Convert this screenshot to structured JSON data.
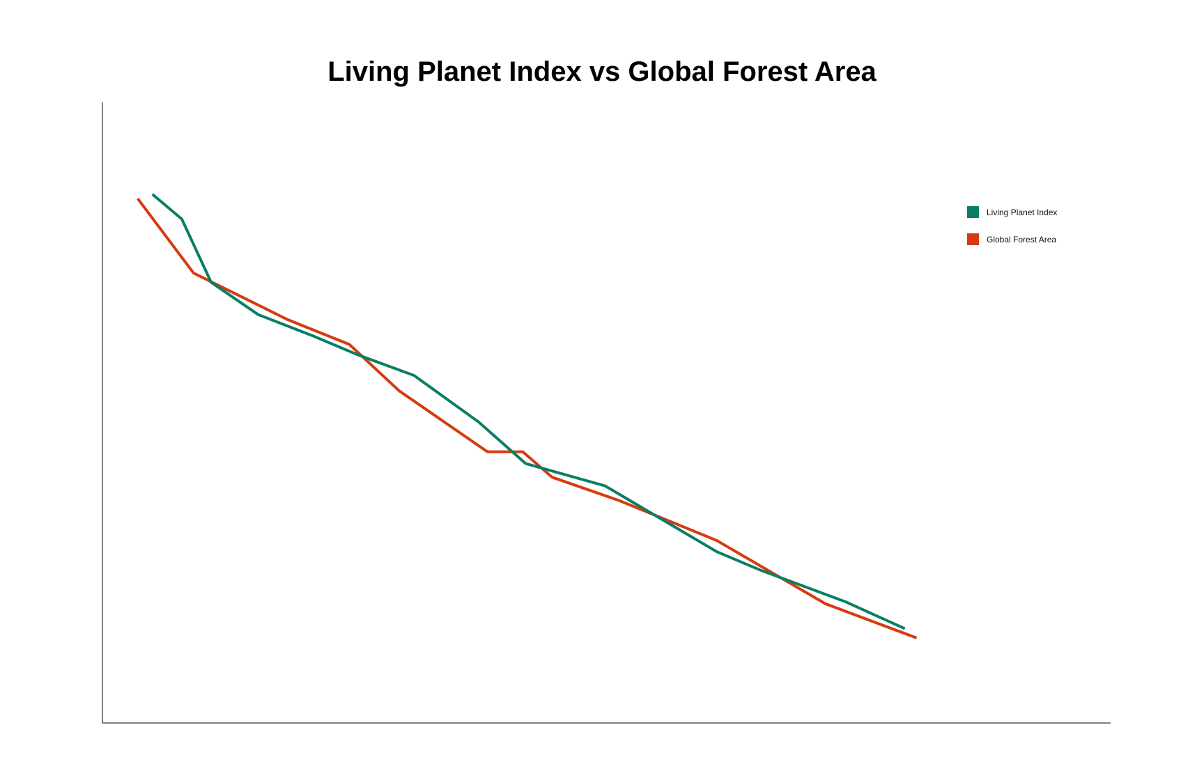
{
  "chart_data": {
    "type": "line",
    "title": "Living Planet Index vs Global Forest Area",
    "xlabel": "",
    "ylabel": "",
    "grid": false,
    "legend_position": "top-right",
    "series": [
      {
        "name": "Living Planet Index",
        "color": "#0a7e64",
        "x": [
          1.0,
          2.0,
          3.0,
          4.6,
          6.5,
          8.0,
          9.9,
          12.1,
          13.7,
          16.4,
          20.2,
          21.7,
          24.6,
          26.6
        ],
        "y": [
          85.2,
          81.2,
          71.0,
          65.8,
          62.3,
          59.3,
          56.0,
          48.5,
          41.8,
          38.2,
          27.6,
          24.6,
          19.5,
          15.2
        ]
      },
      {
        "name": "Global Forest Area",
        "color": "#d63b10",
        "x": [
          0.5,
          2.4,
          5.6,
          7.7,
          9.4,
          12.4,
          13.6,
          14.6,
          16.9,
          20.2,
          23.9,
          27.0
        ],
        "y": [
          84.5,
          72.5,
          65.0,
          61.0,
          53.5,
          43.7,
          43.7,
          39.6,
          35.8,
          29.4,
          19.2,
          13.7
        ]
      }
    ],
    "xlim": [
      -0.7,
      33.6
    ],
    "ylim": [
      0,
      100
    ]
  }
}
